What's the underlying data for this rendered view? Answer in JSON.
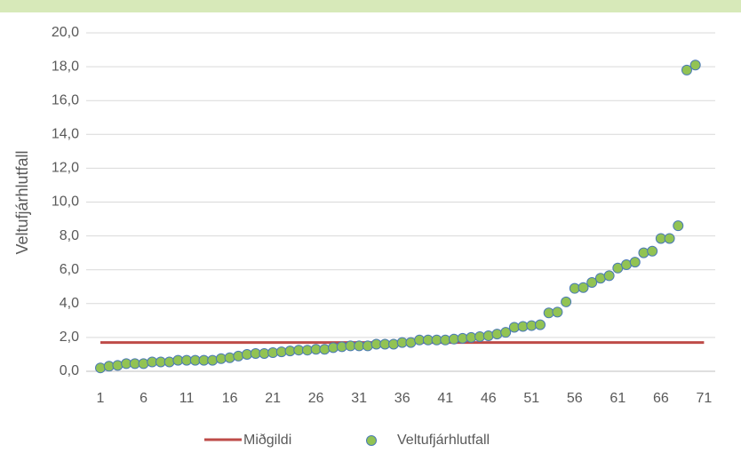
{
  "chart_data": {
    "type": "scatter",
    "ylabel": "Veltufjárhlutfall",
    "xlim": [
      -0.65,
      72.3
    ],
    "xticks": [
      1,
      6,
      11,
      16,
      21,
      26,
      31,
      36,
      41,
      46,
      51,
      56,
      61,
      66,
      71
    ],
    "ylim": [
      0,
      20
    ],
    "yticks": [
      {
        "value": 0,
        "label": "0,0"
      },
      {
        "value": 2,
        "label": "2,0"
      },
      {
        "value": 4,
        "label": "4,0"
      },
      {
        "value": 6,
        "label": "6,0"
      },
      {
        "value": 8,
        "label": "8,0"
      },
      {
        "value": 10,
        "label": "10,0"
      },
      {
        "value": 12,
        "label": "12,0"
      },
      {
        "value": 14,
        "label": "14,0"
      },
      {
        "value": 16,
        "label": "16,0"
      },
      {
        "value": 18,
        "label": "18,0"
      },
      {
        "value": 20,
        "label": "20,0"
      }
    ],
    "grid": true,
    "legend": "bottom",
    "series": [
      {
        "name": "Miðgildi",
        "type": "line",
        "color": "#be4b48",
        "x": [
          1,
          71
        ],
        "values": [
          1.7,
          1.7
        ]
      },
      {
        "name": "Veltufjárhlutfall",
        "type": "scatter",
        "color": "#92c353",
        "edgecolor": "#4a7ab5",
        "x": [
          1,
          2,
          3,
          4,
          5,
          6,
          7,
          8,
          9,
          10,
          11,
          12,
          13,
          14,
          15,
          16,
          17,
          18,
          19,
          20,
          21,
          22,
          23,
          24,
          25,
          26,
          27,
          28,
          29,
          30,
          31,
          32,
          33,
          34,
          35,
          36,
          37,
          38,
          39,
          40,
          41,
          42,
          43,
          44,
          45,
          46,
          47,
          48,
          49,
          50,
          51,
          52,
          53,
          54,
          55,
          56,
          57,
          58,
          59,
          60,
          61,
          62,
          63,
          64,
          65,
          66,
          67,
          68,
          69,
          70
        ],
        "values": [
          0.2,
          0.3,
          0.35,
          0.45,
          0.45,
          0.45,
          0.55,
          0.55,
          0.55,
          0.65,
          0.65,
          0.65,
          0.65,
          0.65,
          0.75,
          0.8,
          0.9,
          1.0,
          1.05,
          1.05,
          1.1,
          1.15,
          1.2,
          1.25,
          1.25,
          1.3,
          1.3,
          1.4,
          1.45,
          1.5,
          1.5,
          1.5,
          1.6,
          1.6,
          1.6,
          1.7,
          1.7,
          1.85,
          1.85,
          1.85,
          1.85,
          1.9,
          1.95,
          2.0,
          2.05,
          2.1,
          2.2,
          2.3,
          2.6,
          2.65,
          2.7,
          2.75,
          3.45,
          3.5,
          4.1,
          4.9,
          4.95,
          5.25,
          5.5,
          5.65,
          6.1,
          6.3,
          6.45,
          7.0,
          7.1,
          7.85,
          7.85,
          8.6,
          17.8,
          18.1
        ]
      }
    ]
  }
}
